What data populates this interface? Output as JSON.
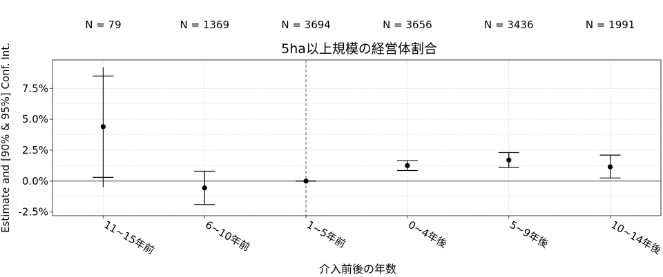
{
  "chart_data": {
    "type": "scatter",
    "title": "5ha以上規模の経営体割合",
    "xlabel": "介入前後の年数",
    "ylabel": "Estimate and [90% & 95%] Conf. Int.",
    "categories": [
      "11~15年前",
      "6~10年前",
      "1~5年前",
      "0~4年後",
      "5~9年後",
      "10~14年後"
    ],
    "n_labels": [
      "N = 79",
      "N = 1369",
      "N = 3694",
      "N = 3656",
      "N = 3436",
      "N = 1991"
    ],
    "estimates": [
      4.4,
      -0.55,
      0.0,
      1.25,
      1.7,
      1.15
    ],
    "ci90": [
      [
        0.3,
        8.5
      ],
      [
        -1.9,
        0.8
      ],
      [
        0.0,
        0.0
      ],
      [
        0.85,
        1.65
      ],
      [
        1.1,
        2.3
      ],
      [
        0.25,
        2.1
      ]
    ],
    "ci95": [
      [
        -0.5,
        9.2
      ],
      [
        -1.9,
        0.8
      ],
      [
        0.0,
        0.0
      ],
      [
        0.85,
        1.65
      ],
      [
        1.1,
        2.3
      ],
      [
        0.25,
        2.1
      ]
    ],
    "yticks": [
      "-2.5%",
      "0.0%",
      "2.5%",
      "5.0%",
      "7.5%"
    ],
    "ytick_values": [
      -2.5,
      0.0,
      2.5,
      5.0,
      7.5
    ],
    "ylim": [
      -2.8,
      9.8
    ],
    "reference_line_y": 0.0,
    "vertical_reference_category": "1~5年前",
    "grid": true,
    "colors": {
      "mark": "#000000",
      "grid": "#d9d9d9",
      "frame": "#333333"
    }
  }
}
